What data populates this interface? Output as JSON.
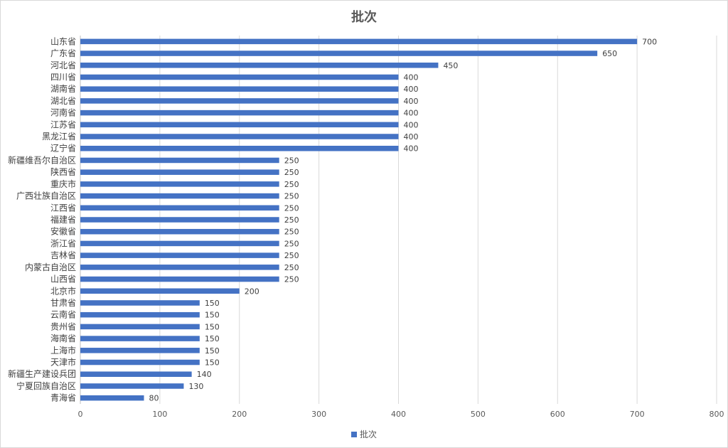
{
  "chart_data": {
    "type": "bar",
    "orientation": "horizontal",
    "title": "批次",
    "categories": [
      "山东省",
      "广东省",
      "河北省",
      "四川省",
      "湖南省",
      "湖北省",
      "河南省",
      "江苏省",
      "黑龙江省",
      "辽宁省",
      "新疆维吾尔自治区",
      "陕西省",
      "重庆市",
      "广西壮族自治区",
      "江西省",
      "福建省",
      "安徽省",
      "浙江省",
      "吉林省",
      "内蒙古自治区",
      "山西省",
      "北京市",
      "甘肃省",
      "云南省",
      "贵州省",
      "海南省",
      "上海市",
      "天津市",
      "新疆生产建设兵团",
      "宁夏回族自治区",
      "青海省"
    ],
    "series": [
      {
        "name": "批次",
        "values": [
          700,
          650,
          450,
          400,
          400,
          400,
          400,
          400,
          400,
          400,
          250,
          250,
          250,
          250,
          250,
          250,
          250,
          250,
          250,
          250,
          250,
          200,
          150,
          150,
          150,
          150,
          150,
          150,
          140,
          130,
          80
        ]
      }
    ],
    "xlim": [
      0,
      800
    ],
    "xticks": [
      0,
      100,
      200,
      300,
      400,
      500,
      600,
      700,
      800
    ],
    "grid": true,
    "legend_position": "bottom",
    "bar_color": "#4472c4"
  }
}
